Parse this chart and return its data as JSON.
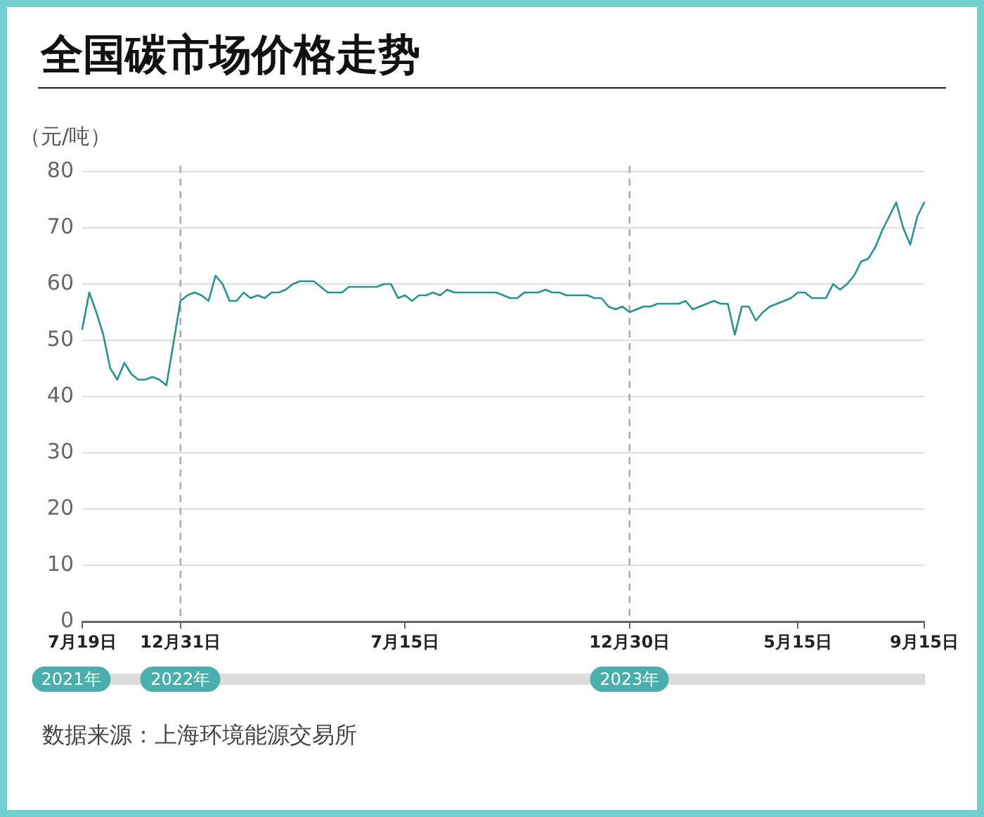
{
  "chart_data": {
    "type": "line",
    "title": "全国碳市场价格走势",
    "ylabel": "（元/吨）",
    "categories": [
      "7月19日",
      null,
      null,
      null,
      null,
      null,
      null,
      null,
      null,
      null,
      null,
      null,
      null,
      null,
      "12月31日",
      null,
      null,
      null,
      null,
      null,
      null,
      null,
      null,
      null,
      null,
      null,
      null,
      null,
      null,
      null,
      null,
      null,
      null,
      null,
      null,
      null,
      null,
      null,
      null,
      null,
      null,
      null,
      null,
      null,
      null,
      null,
      "7月15日",
      null,
      null,
      null,
      null,
      null,
      null,
      null,
      null,
      null,
      null,
      null,
      null,
      null,
      null,
      null,
      null,
      null,
      null,
      null,
      null,
      null,
      null,
      null,
      null,
      null,
      null,
      null,
      null,
      null,
      null,
      null,
      "12月30日",
      null,
      null,
      null,
      null,
      null,
      null,
      null,
      null,
      null,
      null,
      null,
      null,
      null,
      null,
      null,
      null,
      null,
      null,
      null,
      null,
      null,
      null,
      null,
      "5月15日",
      null,
      null,
      null,
      null,
      null,
      null,
      null,
      null,
      null,
      null,
      null,
      null,
      null,
      null,
      null,
      null,
      null,
      "9月15日"
    ],
    "values": [
      52,
      58.5,
      55,
      51,
      45,
      43,
      46,
      44,
      43,
      43,
      43.5,
      43,
      42,
      49.5,
      57,
      58,
      58.5,
      58,
      57,
      61.5,
      60,
      57,
      57,
      58.5,
      57.5,
      58,
      57.5,
      58.5,
      58.5,
      59,
      60,
      60.5,
      60.5,
      60.5,
      59.5,
      58.5,
      58.5,
      58.5,
      59.5,
      59.5,
      59.5,
      59.5,
      59.5,
      60,
      60,
      57.5,
      58,
      57,
      58,
      58,
      58.5,
      58,
      59,
      58.5,
      58.5,
      58.5,
      58.5,
      58.5,
      58.5,
      58.5,
      58,
      57.5,
      57.5,
      58.5,
      58.5,
      58.5,
      59,
      58.5,
      58.5,
      58,
      58,
      58,
      58,
      57.5,
      57.5,
      56,
      55.5,
      56,
      55,
      55.5,
      56,
      56,
      56.5,
      56.5,
      56.5,
      56.5,
      57,
      55.5,
      56,
      56.5,
      57,
      56.5,
      56.5,
      51,
      56,
      56,
      53.5,
      55,
      56,
      56.5,
      57,
      57.5,
      58.5,
      58.5,
      57.5,
      57.5,
      57.5,
      60,
      59,
      60,
      61.5,
      64,
      64.5,
      66.5,
      69.5,
      72,
      74.5,
      70,
      67,
      72,
      74.5
    ],
    "color": "#2a9090",
    "ylim": [
      0,
      80
    ],
    "yticks": [
      0,
      10,
      20,
      30,
      40,
      50,
      60,
      70,
      80
    ],
    "grid": "y",
    "ref_lines": [
      {
        "axis": "x",
        "value": "12月31日",
        "color": "#a8a8a8",
        "line_style": "dashed"
      },
      {
        "axis": "x",
        "value": "12月30日",
        "color": "#a8a8a8",
        "line_style": "dashed"
      }
    ],
    "annotations": [
      "2021年",
      "2022年",
      "2023年",
      "数据来源：上海环境能源交易所"
    ]
  }
}
